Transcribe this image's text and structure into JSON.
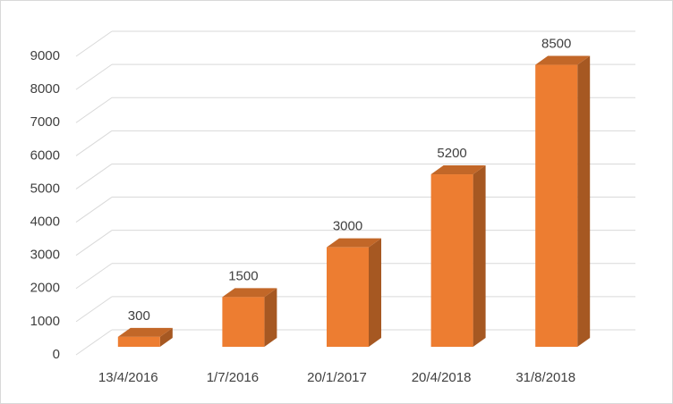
{
  "chart_data": {
    "type": "bar3d",
    "categories": [
      "13/4/2016",
      "1/7/2016",
      "20/1/2017",
      "20/4/2018",
      "31/8/2018"
    ],
    "values": [
      300,
      1500,
      3000,
      5200,
      8500
    ],
    "color": "#ed7d31",
    "ylim": [
      0,
      9000
    ],
    "yticks": [
      0,
      1000,
      2000,
      3000,
      4000,
      5000,
      6000,
      7000,
      8000,
      9000
    ],
    "grid": true
  }
}
